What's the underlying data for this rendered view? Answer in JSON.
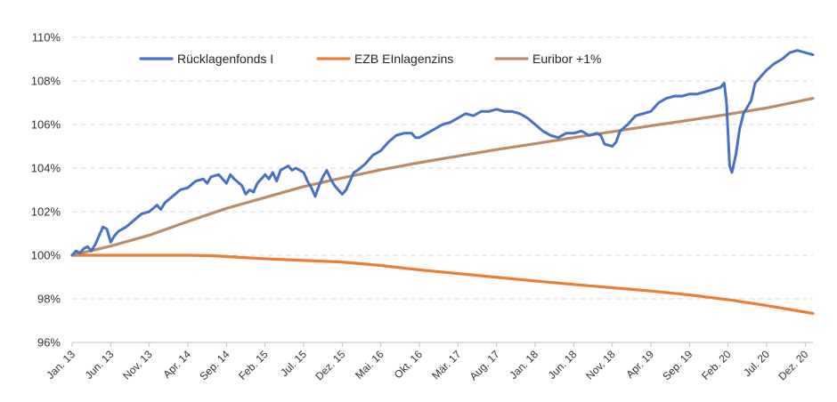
{
  "chart_data": {
    "type": "line",
    "title": "",
    "xlabel": "",
    "ylabel": "",
    "ylim": [
      96,
      110
    ],
    "y_ticks": [
      "96%",
      "98%",
      "100%",
      "102%",
      "104%",
      "106%",
      "108%",
      "110%"
    ],
    "y_tick_values": [
      96,
      98,
      100,
      102,
      104,
      106,
      108,
      110
    ],
    "x_range": [
      0,
      96
    ],
    "x_tick_labels": [
      "Jan. 13",
      "Jun. 13",
      "Nov. 13",
      "Apr. 14",
      "Sep. 14",
      "Feb. 15",
      "Jul. 15",
      "Dez. 15",
      "Mai. 16",
      "Okt. 16",
      "Mär. 17",
      "Aug. 17",
      "Jan. 18",
      "Jun. 18",
      "Nov. 18",
      "Apr. 19",
      "Sep. 19",
      "Feb. 20",
      "Jul. 20",
      "Dez. 20"
    ],
    "x_tick_positions": [
      0,
      5,
      10,
      15,
      20,
      25,
      30,
      35,
      40,
      45,
      50,
      55,
      60,
      65,
      70,
      75,
      80,
      85,
      90,
      95
    ],
    "grid": true,
    "legend_position": "top",
    "series": [
      {
        "name": "Rücklagenfonds I",
        "color": "#4472C4",
        "points": [
          [
            0,
            100.0
          ],
          [
            0.5,
            100.2
          ],
          [
            1,
            100.1
          ],
          [
            1.5,
            100.3
          ],
          [
            2,
            100.4
          ],
          [
            2.5,
            100.2
          ],
          [
            3,
            100.5
          ],
          [
            3.5,
            100.9
          ],
          [
            4,
            101.3
          ],
          [
            4.5,
            101.2
          ],
          [
            5,
            100.6
          ],
          [
            5.5,
            100.9
          ],
          [
            6,
            101.1
          ],
          [
            7,
            101.3
          ],
          [
            8,
            101.6
          ],
          [
            9,
            101.9
          ],
          [
            10,
            102.0
          ],
          [
            11,
            102.3
          ],
          [
            11.5,
            102.1
          ],
          [
            12,
            102.4
          ],
          [
            13,
            102.7
          ],
          [
            14,
            103.0
          ],
          [
            15,
            103.1
          ],
          [
            16,
            103.4
          ],
          [
            17,
            103.5
          ],
          [
            17.5,
            103.3
          ],
          [
            18,
            103.6
          ],
          [
            19,
            103.7
          ],
          [
            20,
            103.3
          ],
          [
            20.5,
            103.7
          ],
          [
            21,
            103.5
          ],
          [
            22,
            103.2
          ],
          [
            22.5,
            102.8
          ],
          [
            23,
            103.0
          ],
          [
            23.5,
            102.9
          ],
          [
            24,
            103.3
          ],
          [
            25,
            103.7
          ],
          [
            25.5,
            103.5
          ],
          [
            26,
            103.8
          ],
          [
            26.5,
            103.4
          ],
          [
            27,
            103.9
          ],
          [
            27.5,
            104.0
          ],
          [
            28,
            104.1
          ],
          [
            28.5,
            103.9
          ],
          [
            29,
            104.0
          ],
          [
            30,
            103.8
          ],
          [
            30.5,
            103.4
          ],
          [
            31,
            103.1
          ],
          [
            31.5,
            102.7
          ],
          [
            32,
            103.2
          ],
          [
            32.5,
            103.6
          ],
          [
            33,
            103.9
          ],
          [
            33.5,
            103.5
          ],
          [
            34,
            103.2
          ],
          [
            35,
            102.8
          ],
          [
            35.5,
            103.0
          ],
          [
            36,
            103.4
          ],
          [
            36.5,
            103.8
          ],
          [
            37,
            103.9
          ],
          [
            38,
            104.2
          ],
          [
            39,
            104.6
          ],
          [
            40,
            104.8
          ],
          [
            41,
            105.2
          ],
          [
            42,
            105.5
          ],
          [
            43,
            105.6
          ],
          [
            44,
            105.6
          ],
          [
            44.5,
            105.4
          ],
          [
            45,
            105.4
          ],
          [
            46,
            105.6
          ],
          [
            47,
            105.8
          ],
          [
            48,
            106.0
          ],
          [
            49,
            106.1
          ],
          [
            50,
            106.3
          ],
          [
            51,
            106.5
          ],
          [
            52,
            106.4
          ],
          [
            53,
            106.6
          ],
          [
            54,
            106.6
          ],
          [
            55,
            106.7
          ],
          [
            56,
            106.6
          ],
          [
            57,
            106.6
          ],
          [
            58,
            106.5
          ],
          [
            59,
            106.3
          ],
          [
            60,
            106.0
          ],
          [
            61,
            105.7
          ],
          [
            62,
            105.5
          ],
          [
            63,
            105.4
          ],
          [
            64,
            105.6
          ],
          [
            65,
            105.6
          ],
          [
            66,
            105.7
          ],
          [
            67,
            105.5
          ],
          [
            68,
            105.6
          ],
          [
            68.5,
            105.5
          ],
          [
            69,
            105.1
          ],
          [
            70,
            105.0
          ],
          [
            70.5,
            105.2
          ],
          [
            71,
            105.7
          ],
          [
            72,
            106.0
          ],
          [
            73,
            106.4
          ],
          [
            74,
            106.5
          ],
          [
            75,
            106.6
          ],
          [
            76,
            107.0
          ],
          [
            77,
            107.2
          ],
          [
            78,
            107.3
          ],
          [
            79,
            107.3
          ],
          [
            80,
            107.4
          ],
          [
            81,
            107.4
          ],
          [
            82,
            107.5
          ],
          [
            83,
            107.6
          ],
          [
            84,
            107.7
          ],
          [
            84.5,
            107.9
          ],
          [
            84.8,
            107.0
          ],
          [
            85.2,
            104.1
          ],
          [
            85.5,
            103.8
          ],
          [
            86,
            104.6
          ],
          [
            86.5,
            105.8
          ],
          [
            87,
            106.5
          ],
          [
            88,
            107.1
          ],
          [
            88.5,
            107.9
          ],
          [
            89,
            108.1
          ],
          [
            90,
            108.5
          ],
          [
            91,
            108.8
          ],
          [
            92,
            109.0
          ],
          [
            93,
            109.3
          ],
          [
            94,
            109.4
          ],
          [
            95,
            109.3
          ],
          [
            96,
            109.2
          ]
        ]
      },
      {
        "name": "EZB EInlagenzins",
        "color": "#ED7D31",
        "points": [
          [
            0,
            100.0
          ],
          [
            5,
            100.0
          ],
          [
            10,
            100.0
          ],
          [
            15,
            100.0
          ],
          [
            18,
            99.98
          ],
          [
            20,
            99.94
          ],
          [
            25,
            99.84
          ],
          [
            30,
            99.76
          ],
          [
            35,
            99.69
          ],
          [
            40,
            99.53
          ],
          [
            45,
            99.33
          ],
          [
            50,
            99.16
          ],
          [
            55,
            98.99
          ],
          [
            60,
            98.82
          ],
          [
            65,
            98.66
          ],
          [
            70,
            98.51
          ],
          [
            75,
            98.36
          ],
          [
            80,
            98.18
          ],
          [
            85,
            97.96
          ],
          [
            90,
            97.69
          ],
          [
            96,
            97.33
          ]
        ]
      },
      {
        "name": "Euribor +1%",
        "color": "#BE8A68",
        "points": [
          [
            0,
            100.0
          ],
          [
            5,
            100.42
          ],
          [
            10,
            100.92
          ],
          [
            15,
            101.55
          ],
          [
            20,
            102.15
          ],
          [
            25,
            102.65
          ],
          [
            30,
            103.15
          ],
          [
            35,
            103.55
          ],
          [
            40,
            103.92
          ],
          [
            45,
            104.25
          ],
          [
            50,
            104.55
          ],
          [
            55,
            104.85
          ],
          [
            60,
            105.12
          ],
          [
            65,
            105.4
          ],
          [
            70,
            105.67
          ],
          [
            75,
            105.94
          ],
          [
            80,
            106.2
          ],
          [
            85,
            106.47
          ],
          [
            90,
            106.76
          ],
          [
            96,
            107.2
          ]
        ]
      }
    ]
  }
}
